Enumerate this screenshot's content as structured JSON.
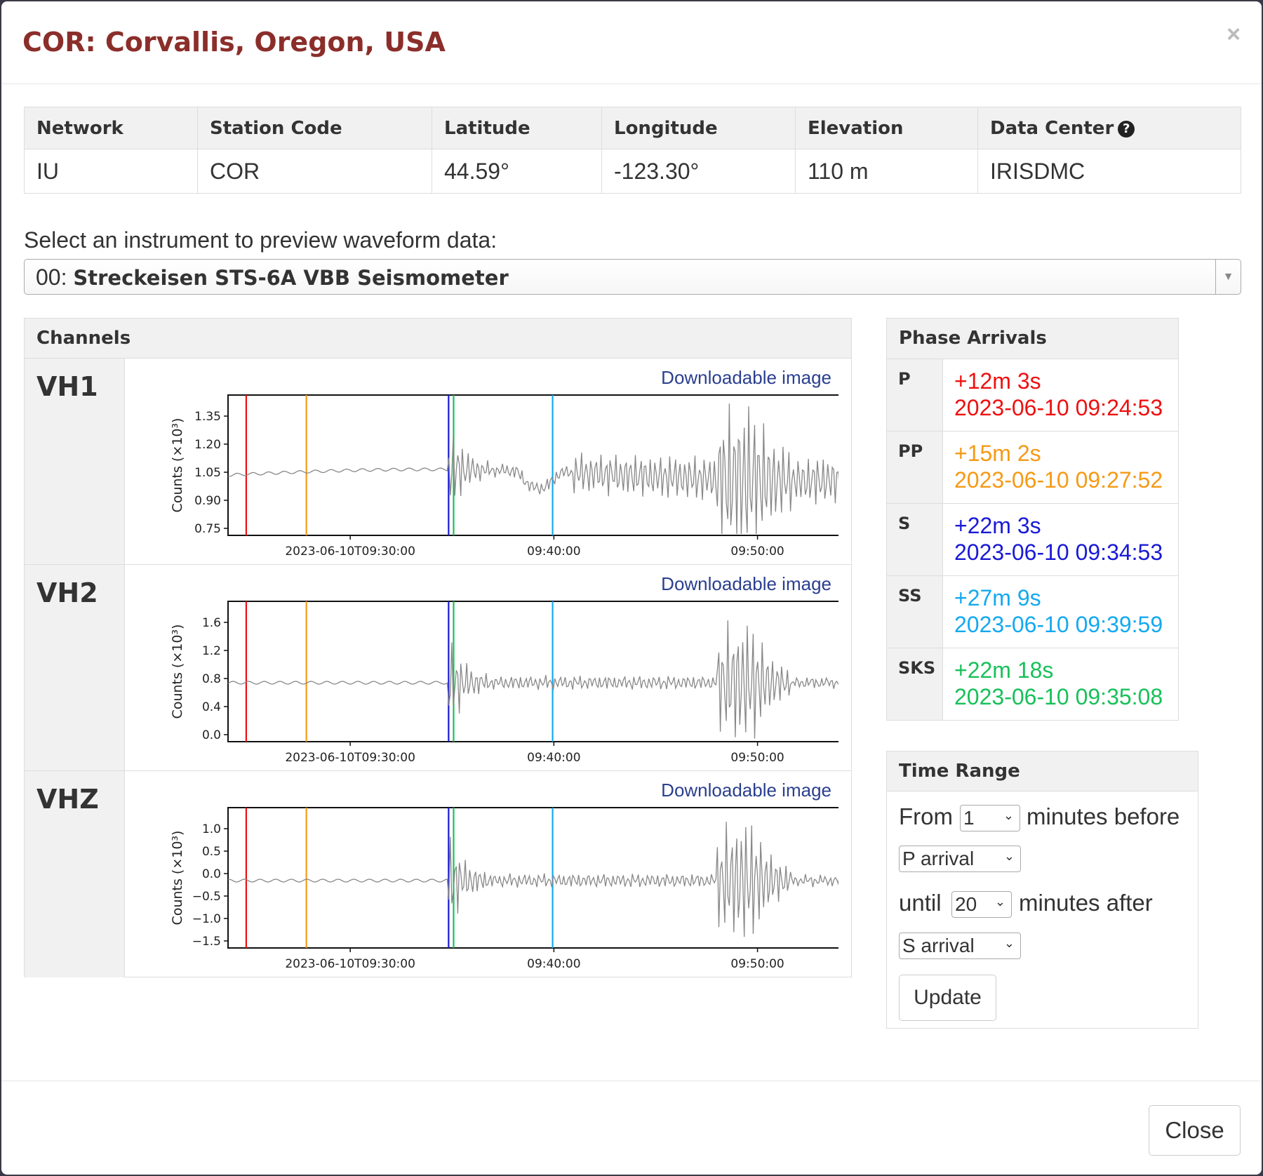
{
  "modal": {
    "title": "COR: Corvallis, Oregon, USA",
    "close_x": "×"
  },
  "station_table": {
    "headers": [
      "Network",
      "Station Code",
      "Latitude",
      "Longitude",
      "Elevation",
      "Data Center"
    ],
    "values": [
      "IU",
      "COR",
      "44.59°",
      "-123.30°",
      "110 m",
      "IRISDMC"
    ],
    "help_icon": "question-circle-icon"
  },
  "instrument": {
    "label": "Select an instrument to preview waveform data:",
    "code": "00:",
    "name": "Streckeisen STS-6A VBB Seismometer"
  },
  "channels": {
    "heading": "Channels",
    "download_label": "Downloadable image",
    "items": [
      {
        "name": "VH1",
        "ylabel": "Counts (×10³)",
        "yticks": [
          "1.35",
          "1.20",
          "1.05",
          "0.90",
          "0.75"
        ]
      },
      {
        "name": "VH2",
        "ylabel": "Counts (×10³)",
        "yticks": [
          "1.6",
          "1.2",
          "0.8",
          "0.4",
          "0.0"
        ]
      },
      {
        "name": "VHZ",
        "ylabel": "Counts (×10³)",
        "yticks": [
          "1.0",
          "0.5",
          "0.0",
          "−0.5",
          "−1.0",
          "−1.5"
        ]
      }
    ],
    "xticks": [
      "2023-06-10T09:30:00",
      "09:40:00",
      "09:50:00"
    ]
  },
  "phases": {
    "heading": "Phase Arrivals",
    "items": [
      {
        "key": "P",
        "offset": "+12m 3s",
        "time": "2023-06-10 09:24:53",
        "color": "#ee1111"
      },
      {
        "key": "PP",
        "offset": "+15m 2s",
        "time": "2023-06-10 09:27:52",
        "color": "#f59a16"
      },
      {
        "key": "S",
        "offset": "+22m 3s",
        "time": "2023-06-10 09:34:53",
        "color": "#1a1ad6"
      },
      {
        "key": "SS",
        "offset": "+27m 9s",
        "time": "2023-06-10 09:39:59",
        "color": "#14a9f0"
      },
      {
        "key": "SKS",
        "offset": "+22m 18s",
        "time": "2023-06-10 09:35:08",
        "color": "#18c05a"
      }
    ]
  },
  "time_range": {
    "heading": "Time Range",
    "from_label": "From",
    "before_value": "1",
    "before_label": "minutes before",
    "start_phase": "P arrival",
    "until_label": "until",
    "after_value": "20",
    "after_label": "minutes after",
    "end_phase": "S arrival",
    "update_label": "Update"
  },
  "footer": {
    "close_label": "Close"
  },
  "chart_data": [
    {
      "type": "line",
      "title": "VH1",
      "ylabel": "Counts (×10³)",
      "ylim": [
        0.72,
        1.4
      ],
      "x": [
        "2023-06-10T09:30:00",
        "09:40:00",
        "09:50:00"
      ],
      "phase_lines": [
        "P",
        "PP",
        "S",
        "SKS",
        "SS"
      ]
    },
    {
      "type": "line",
      "title": "VH2",
      "ylabel": "Counts (×10³)",
      "ylim": [
        -0.3,
        1.7
      ],
      "x": [
        "2023-06-10T09:30:00",
        "09:40:00",
        "09:50:00"
      ],
      "phase_lines": [
        "P",
        "PP",
        "S",
        "SKS",
        "SS"
      ]
    },
    {
      "type": "line",
      "title": "VHZ",
      "ylabel": "Counts (×10³)",
      "ylim": [
        -1.6,
        1.3
      ],
      "x": [
        "2023-06-10T09:30:00",
        "09:40:00",
        "09:50:00"
      ],
      "phase_lines": [
        "P",
        "PP",
        "S",
        "SKS",
        "SS"
      ]
    }
  ]
}
